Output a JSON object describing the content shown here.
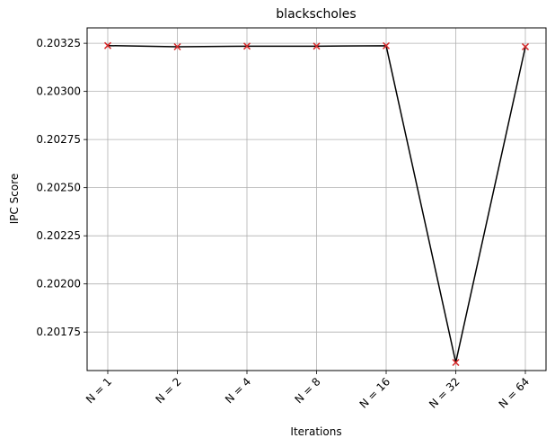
{
  "chart_data": {
    "type": "line",
    "title": "blackscholes",
    "xlabel": "Iterations",
    "ylabel": "IPC Score",
    "categories": [
      "N = 1",
      "N = 2",
      "N = 4",
      "N = 8",
      "N = 16",
      "N = 32",
      "N = 64"
    ],
    "series": [
      {
        "values": [
          0.203238,
          0.203232,
          0.203235,
          0.203235,
          0.203237,
          0.201592,
          0.203232
        ],
        "line_color": "#000000",
        "marker": "x",
        "marker_color": "#d62728"
      }
    ],
    "ylim": [
      0.20155,
      0.20333
    ],
    "yticks": [
      0.20175,
      0.202,
      0.20225,
      0.2025,
      0.20275,
      0.203,
      0.20325
    ],
    "ytick_labels": [
      "0.20175",
      "0.20200",
      "0.20225",
      "0.20250",
      "0.20275",
      "0.20300",
      "0.20325"
    ],
    "grid": true,
    "grid_color": "#b0b0b0",
    "xtick_rotation": 45
  }
}
